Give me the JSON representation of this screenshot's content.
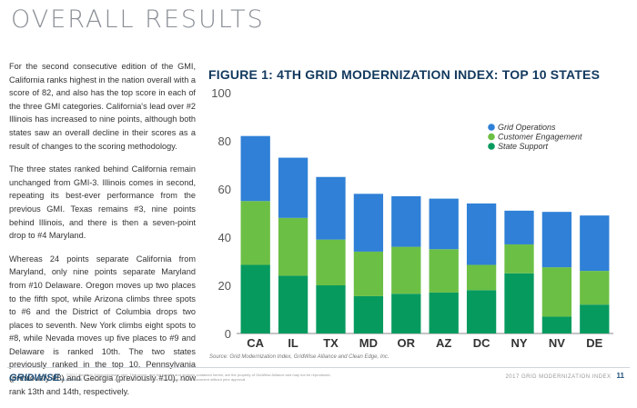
{
  "page": {
    "title": "OVERALL RESULTS",
    "paragraphs": [
      "For the second consecutive edition of the GMI, California ranks highest in the nation overall with a score of 82, and also has the top score in each of the three GMI categories. California's lead over #2 Illinois has increased to nine points, although both states saw an overall decline in their scores as a result of changes to the scoring methodology.",
      "The three states ranked behind California remain unchanged from GMI-3. Illinois comes in second, repeating its best-ever performance from the previous GMI. Texas remains #3, nine points behind Illinois, and there is then a seven-point drop to #4 Maryland.",
      "Whereas 24 points separate California from Maryland, only nine points separate Maryland from #10 Delaware. Oregon moves up two places to the fifth spot, while Arizona climbs three spots to #6 and the District of Columbia drops two places to seventh. New York climbs eight spots to #8, while Nevada moves up five places to #9 and Delaware is ranked 10th. The two states previously ranked in the top 10, Pennsylvania (previously #8) and Georgia (previously #10), now rank 13th and 14th, respectively."
    ]
  },
  "figure_title": "FIGURE 1: 4TH GRID MODERNIZATION INDEX: TOP 10 STATES",
  "source": "Source: Grid Modernization Index, GridWise Alliance and Clean Edge, Inc.",
  "footer": {
    "logo": "GRIDWISE",
    "logo_small": "ALLIANCE",
    "legal": "©2017 GridWise Alliance (please cite). This report, and the models and analysis contained herein, are the property of GridWise Alliance and may not be reproduced, published, or summarized for distribution or incorporation into a report or other document without prior approval.",
    "report_label": "2017 GRID MODERNIZATION INDEX",
    "page_number": "11"
  },
  "chart_data": {
    "type": "bar",
    "stacked": true,
    "categories": [
      "CA",
      "IL",
      "TX",
      "MD",
      "OR",
      "AZ",
      "DC",
      "NY",
      "NV",
      "DE"
    ],
    "series": [
      {
        "name": "State Support",
        "color": "#079a5f",
        "values": [
          28.5,
          24,
          20,
          15.5,
          16.5,
          17,
          18,
          25,
          7,
          12
        ]
      },
      {
        "name": "Customer Engagement",
        "color": "#6cbf45",
        "values": [
          26.5,
          24,
          19,
          18.5,
          19.5,
          18,
          10.5,
          12,
          20.5,
          14
        ]
      },
      {
        "name": "Grid Operations",
        "color": "#2f80d6",
        "values": [
          27,
          25,
          26,
          24,
          21,
          21,
          25.5,
          14,
          23,
          23
        ]
      }
    ],
    "legend_order": [
      "Grid Operations",
      "Customer Engagement",
      "State Support"
    ],
    "y_ticks": [
      0,
      20,
      40,
      60,
      80,
      100
    ],
    "ylim": [
      0,
      100
    ],
    "grid": false,
    "legend_position": "top-right"
  }
}
